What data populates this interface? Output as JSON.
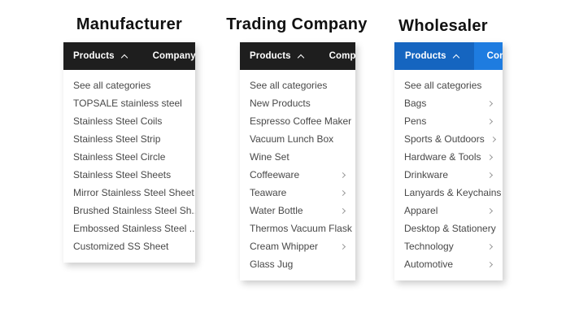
{
  "colors": {
    "dark_bar_bg": "#1e1e1e",
    "blue_bar_bg": "#1e7ce0",
    "blue_active_tab_bg": "#1565c0",
    "bar_text": "#ffffff",
    "item_text": "#484848",
    "chevron": "#999999",
    "title_text": "#111111"
  },
  "icons": {
    "products_caret": "chevron-up-icon",
    "submenu_arrow": "chevron-right-icon"
  },
  "panels": [
    {
      "title": "Manufacturer",
      "nav": {
        "products": "Products",
        "company": "Company Profile"
      },
      "items": [
        {
          "label": "See all categories",
          "submenu": false
        },
        {
          "label": "TOPSALE stainless steel",
          "submenu": false
        },
        {
          "label": "Stainless Steel Coils",
          "submenu": false
        },
        {
          "label": "Stainless Steel Strip",
          "submenu": false
        },
        {
          "label": "Stainless Steel Circle",
          "submenu": false
        },
        {
          "label": "Stainless Steel Sheets",
          "submenu": false
        },
        {
          "label": "Mirror Stainless Steel Sheet",
          "submenu": false
        },
        {
          "label": "Brushed Stainless Steel Sh...",
          "submenu": false
        },
        {
          "label": "Embossed Stainless Steel ...",
          "submenu": false
        },
        {
          "label": "Customized SS Sheet",
          "submenu": false
        }
      ]
    },
    {
      "title": "Trading Company",
      "nav": {
        "products": "Products",
        "company": "Company Profile"
      },
      "items": [
        {
          "label": "See all categories",
          "submenu": false
        },
        {
          "label": "New Products",
          "submenu": false
        },
        {
          "label": "Espresso Coffee Maker",
          "submenu": false
        },
        {
          "label": "Vacuum Lunch Box",
          "submenu": false
        },
        {
          "label": "Wine Set",
          "submenu": false
        },
        {
          "label": "Coffeeware",
          "submenu": true
        },
        {
          "label": "Teaware",
          "submenu": true
        },
        {
          "label": "Water Bottle",
          "submenu": true
        },
        {
          "label": "Thermos Vacuum Flask",
          "submenu": false
        },
        {
          "label": "Cream Whipper",
          "submenu": true
        },
        {
          "label": "Glass Jug",
          "submenu": false
        }
      ]
    },
    {
      "title": "Wholesaler",
      "nav": {
        "products": "Products",
        "company": "Company Profile"
      },
      "items": [
        {
          "label": "See all categories",
          "submenu": false
        },
        {
          "label": "Bags",
          "submenu": true
        },
        {
          "label": "Pens",
          "submenu": true
        },
        {
          "label": "Sports & Outdoors",
          "submenu": true
        },
        {
          "label": "Hardware & Tools",
          "submenu": true
        },
        {
          "label": "Drinkware",
          "submenu": true
        },
        {
          "label": "Lanyards & Keychains",
          "submenu": false
        },
        {
          "label": "Apparel",
          "submenu": true
        },
        {
          "label": "Desktop & Stationery",
          "submenu": false
        },
        {
          "label": "Technology",
          "submenu": true
        },
        {
          "label": "Automotive",
          "submenu": true
        }
      ]
    }
  ]
}
